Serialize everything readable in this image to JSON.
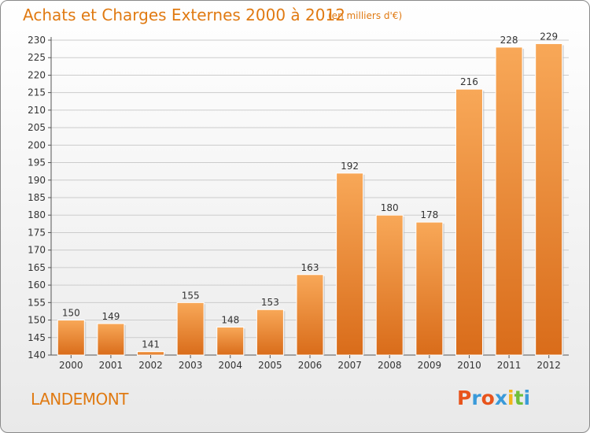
{
  "header": {
    "title": "Achats et Charges Externes 2000 à 2012",
    "unit": "(en milliers d'€)"
  },
  "footer": {
    "location": "LANDEMONT",
    "logo_text": "Proxiti",
    "logo_colors": [
      "#e8541c",
      "#3a9ad9",
      "#e8541c",
      "#3a9ad9",
      "#f2b418",
      "#6fbf3a",
      "#3a9ad9"
    ]
  },
  "colors": {
    "bar_light": "#f8a858",
    "bar_dark": "#d96c1a",
    "accent": "#e07a12",
    "grid": "#cccccc"
  },
  "chart_data": {
    "type": "bar",
    "title": "Achats et Charges Externes 2000 à 2012",
    "subtitle": "(en milliers d'€)",
    "categories": [
      "2000",
      "2001",
      "2002",
      "2003",
      "2004",
      "2005",
      "2006",
      "2007",
      "2008",
      "2009",
      "2010",
      "2011",
      "2012"
    ],
    "values": [
      150,
      149,
      141,
      155,
      148,
      153,
      163,
      192,
      180,
      178,
      216,
      228,
      229
    ],
    "ylim": [
      140,
      230
    ],
    "yticks": [
      140,
      145,
      150,
      155,
      160,
      165,
      170,
      175,
      180,
      185,
      190,
      195,
      200,
      205,
      210,
      215,
      220,
      225,
      230
    ],
    "grid": true,
    "xlabel": "",
    "ylabel": ""
  }
}
